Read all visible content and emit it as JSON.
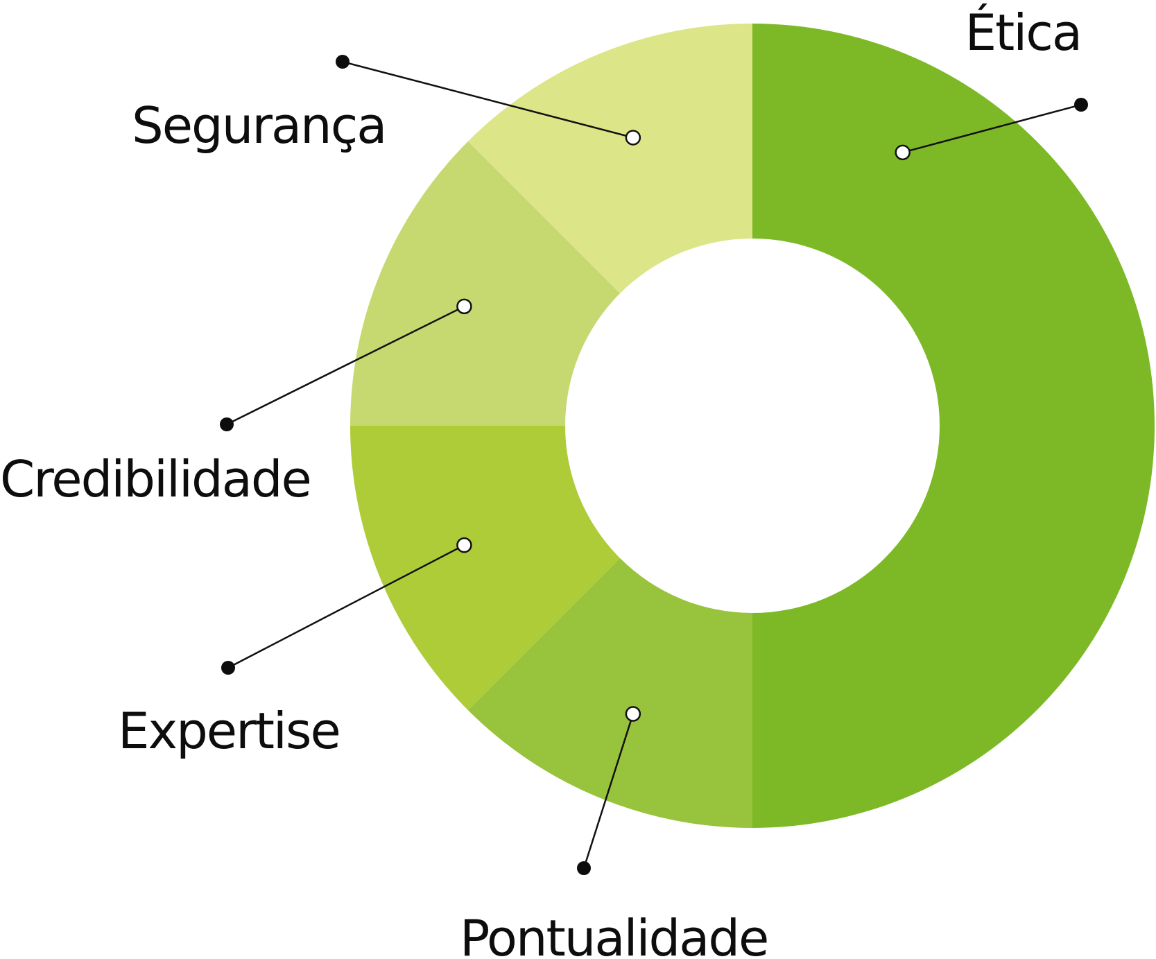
{
  "chart_data": {
    "type": "pie",
    "donut": true,
    "categories": [
      "Ética",
      "Pontualidade",
      "Expertise",
      "Credibilidade",
      "Segurança"
    ],
    "values": [
      50,
      12.5,
      12.5,
      12.5,
      12.5
    ],
    "unit": "%",
    "colors": [
      "#7db927",
      "#98c33c",
      "#aecb38",
      "#c6d971",
      "#dce587"
    ],
    "legend": "none"
  }
}
